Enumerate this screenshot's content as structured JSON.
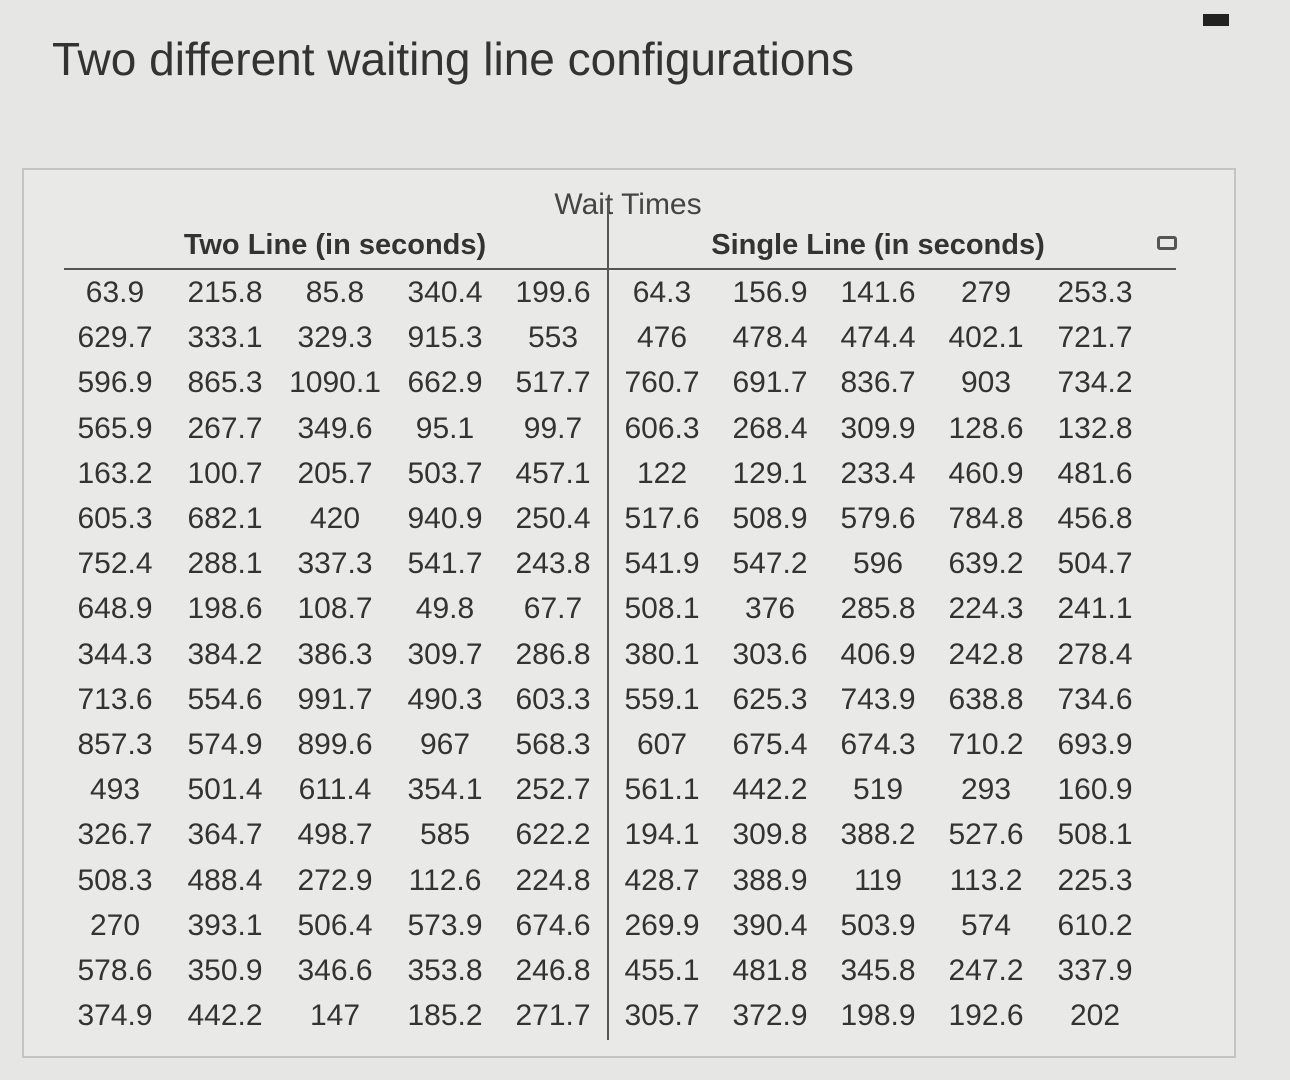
{
  "header": {
    "title": "Two different waiting line configurations"
  },
  "table": {
    "caption": "Wait Times",
    "groups": [
      "Two Line (in seconds)",
      "Single Line (in seconds)"
    ],
    "rows": [
      [
        "63.9",
        "215.8",
        "85.8",
        "340.4",
        "199.6",
        "64.3",
        "156.9",
        "141.6",
        "279",
        "253.3"
      ],
      [
        "629.7",
        "333.1",
        "329.3",
        "915.3",
        "553",
        "476",
        "478.4",
        "474.4",
        "402.1",
        "721.7"
      ],
      [
        "596.9",
        "865.3",
        "1090.1",
        "662.9",
        "517.7",
        "760.7",
        "691.7",
        "836.7",
        "903",
        "734.2"
      ],
      [
        "565.9",
        "267.7",
        "349.6",
        "95.1",
        "99.7",
        "606.3",
        "268.4",
        "309.9",
        "128.6",
        "132.8"
      ],
      [
        "163.2",
        "100.7",
        "205.7",
        "503.7",
        "457.1",
        "122",
        "129.1",
        "233.4",
        "460.9",
        "481.6"
      ],
      [
        "605.3",
        "682.1",
        "420",
        "940.9",
        "250.4",
        "517.6",
        "508.9",
        "579.6",
        "784.8",
        "456.8"
      ],
      [
        "752.4",
        "288.1",
        "337.3",
        "541.7",
        "243.8",
        "541.9",
        "547.2",
        "596",
        "639.2",
        "504.7"
      ],
      [
        "648.9",
        "198.6",
        "108.7",
        "49.8",
        "67.7",
        "508.1",
        "376",
        "285.8",
        "224.3",
        "241.1"
      ],
      [
        "344.3",
        "384.2",
        "386.3",
        "309.7",
        "286.8",
        "380.1",
        "303.6",
        "406.9",
        "242.8",
        "278.4"
      ],
      [
        "713.6",
        "554.6",
        "991.7",
        "490.3",
        "603.3",
        "559.1",
        "625.3",
        "743.9",
        "638.8",
        "734.6"
      ],
      [
        "857.3",
        "574.9",
        "899.6",
        "967",
        "568.3",
        "607",
        "675.4",
        "674.3",
        "710.2",
        "693.9"
      ],
      [
        "493",
        "501.4",
        "611.4",
        "354.1",
        "252.7",
        "561.1",
        "442.2",
        "519",
        "293",
        "160.9"
      ],
      [
        "326.7",
        "364.7",
        "498.7",
        "585",
        "622.2",
        "194.1",
        "309.8",
        "388.2",
        "527.6",
        "508.1"
      ],
      [
        "508.3",
        "488.4",
        "272.9",
        "112.6",
        "224.8",
        "428.7",
        "388.9",
        "119",
        "113.2",
        "225.3"
      ],
      [
        "270",
        "393.1",
        "506.4",
        "573.9",
        "674.6",
        "269.9",
        "390.4",
        "503.9",
        "574",
        "610.2"
      ],
      [
        "578.6",
        "350.9",
        "346.6",
        "353.8",
        "246.8",
        "455.1",
        "481.8",
        "345.8",
        "247.2",
        "337.9"
      ],
      [
        "374.9",
        "442.2",
        "147",
        "185.2",
        "271.7",
        "305.7",
        "372.9",
        "198.9",
        "192.6",
        "202"
      ]
    ]
  }
}
